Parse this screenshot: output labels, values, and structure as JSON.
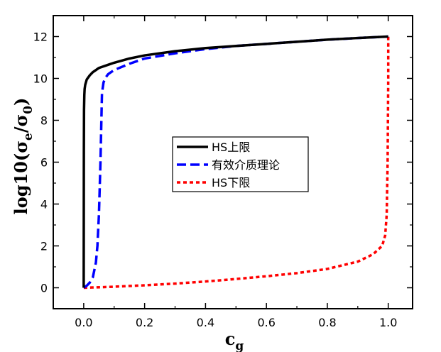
{
  "chart_data": {
    "type": "line",
    "title": "",
    "xlabel": "c",
    "xlabel_sub": "g",
    "ylabel_prefix": "log10(σ",
    "ylabel_sub1": "e",
    "ylabel_mid": "/σ",
    "ylabel_sub2": "0",
    "ylabel_suffix": ")",
    "xlim": [
      -0.1,
      1.08
    ],
    "ylim": [
      -1,
      13
    ],
    "xticks": [
      0.0,
      0.2,
      0.4,
      0.6,
      0.8,
      1.0
    ],
    "xtick_labels": [
      "0.0",
      "0.2",
      "0.4",
      "0.6",
      "0.8",
      "1.0"
    ],
    "yticks": [
      0,
      2,
      4,
      6,
      8,
      10,
      12
    ],
    "ytick_labels": [
      "0",
      "2",
      "4",
      "6",
      "8",
      "10",
      "12"
    ],
    "grid": false,
    "legend_position": "center",
    "series": [
      {
        "name": "HS上限",
        "color": "#000000",
        "style": "solid",
        "x": [
          0.0,
          0.0005,
          0.001,
          0.002,
          0.003,
          0.005,
          0.01,
          0.02,
          0.03,
          0.05,
          0.08,
          0.1,
          0.15,
          0.2,
          0.3,
          0.4,
          0.5,
          0.6,
          0.7,
          0.8,
          0.9,
          1.0
        ],
        "y": [
          0.0,
          6.5,
          8.5,
          9.2,
          9.5,
          9.7,
          9.95,
          10.15,
          10.3,
          10.5,
          10.65,
          10.75,
          10.95,
          11.1,
          11.3,
          11.45,
          11.55,
          11.65,
          11.75,
          11.85,
          11.93,
          12.0
        ]
      },
      {
        "name": "有效介质理论",
        "color": "#0000ff",
        "style": "dashed",
        "x": [
          0.0,
          0.01,
          0.02,
          0.03,
          0.04,
          0.045,
          0.05,
          0.055,
          0.06,
          0.065,
          0.07,
          0.08,
          0.1,
          0.15,
          0.2,
          0.3,
          0.4,
          0.5,
          0.6,
          0.7,
          0.8,
          0.9,
          1.0
        ],
        "y": [
          0.0,
          0.1,
          0.25,
          0.5,
          1.2,
          2.0,
          3.5,
          6.0,
          9.3,
          9.8,
          10.0,
          10.2,
          10.4,
          10.7,
          10.95,
          11.2,
          11.4,
          11.55,
          11.65,
          11.75,
          11.85,
          11.93,
          12.0
        ]
      },
      {
        "name": "HS下限",
        "color": "#ff0000",
        "style": "dotted",
        "x": [
          0.0,
          0.1,
          0.2,
          0.3,
          0.4,
          0.5,
          0.6,
          0.7,
          0.8,
          0.9,
          0.95,
          0.98,
          0.99,
          0.995,
          0.998,
          1.0,
          1.0
        ],
        "y": [
          0.0,
          0.05,
          0.12,
          0.2,
          0.3,
          0.42,
          0.55,
          0.7,
          0.9,
          1.25,
          1.6,
          2.0,
          2.5,
          3.5,
          6.0,
          10.0,
          12.0
        ]
      }
    ]
  }
}
